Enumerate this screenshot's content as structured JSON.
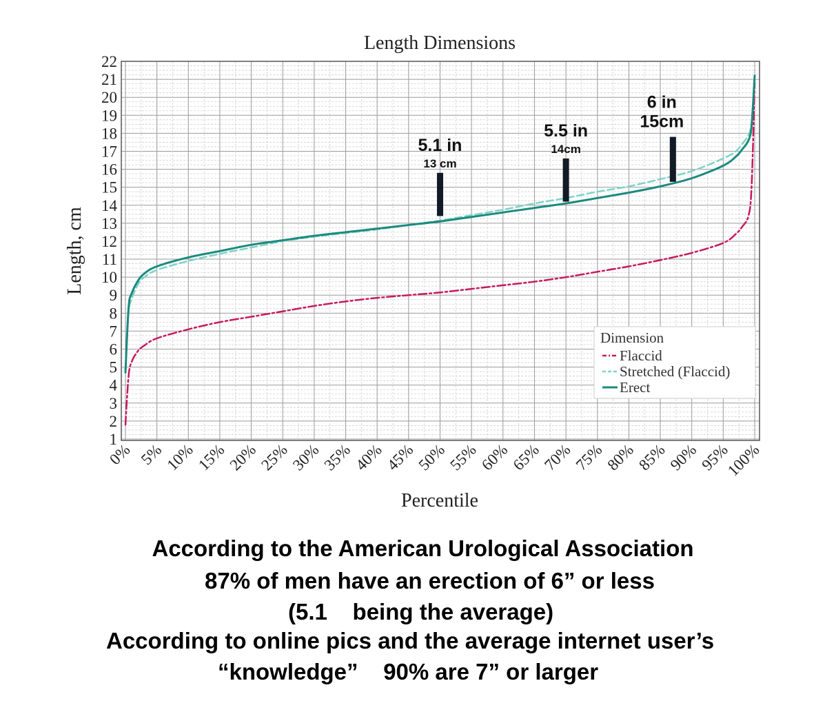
{
  "chart_data": {
    "type": "line",
    "title": "Length Dimensions",
    "xlabel": "Percentile",
    "ylabel": "Length, cm",
    "xlim": [
      0,
      100
    ],
    "ylim": [
      1,
      22
    ],
    "grid": true,
    "x_ticks": [
      0,
      5,
      10,
      15,
      20,
      25,
      30,
      35,
      40,
      45,
      50,
      55,
      60,
      65,
      70,
      75,
      80,
      85,
      90,
      95,
      100
    ],
    "x_tick_labels": [
      "0%",
      "5%",
      "10%",
      "15%",
      "20%",
      "25%",
      "30%",
      "35%",
      "40%",
      "45%",
      "50%",
      "55%",
      "60%",
      "65%",
      "70%",
      "75%",
      "80%",
      "85%",
      "90%",
      "95%",
      "100%"
    ],
    "y_ticks": [
      1,
      2,
      3,
      4,
      5,
      6,
      7,
      8,
      9,
      10,
      11,
      12,
      13,
      14,
      15,
      16,
      17,
      18,
      19,
      20,
      21,
      22
    ],
    "legend": {
      "title": "Dimension",
      "placement": "bottom-right"
    },
    "x": [
      0,
      0.5,
      1,
      2,
      3,
      5,
      10,
      15,
      20,
      25,
      30,
      35,
      40,
      45,
      50,
      55,
      60,
      65,
      70,
      75,
      80,
      85,
      90,
      95,
      97,
      98,
      99,
      99.5,
      100
    ],
    "series": [
      {
        "name": "Flaccid",
        "color": "#c8185f",
        "style": "dashdot",
        "values": [
          1.8,
          4.5,
          5.3,
          5.9,
          6.2,
          6.6,
          7.1,
          7.5,
          7.8,
          8.1,
          8.4,
          8.65,
          8.85,
          9.0,
          9.15,
          9.35,
          9.55,
          9.75,
          10.0,
          10.3,
          10.6,
          10.95,
          11.35,
          11.9,
          12.4,
          12.8,
          13.4,
          15.0,
          20.8
        ]
      },
      {
        "name": "Stretched (Flaccid)",
        "color": "#7ed3c8",
        "style": "dashed",
        "values": [
          4.9,
          8.0,
          8.8,
          9.6,
          10.0,
          10.4,
          10.9,
          11.3,
          11.65,
          12.0,
          12.25,
          12.45,
          12.65,
          12.9,
          13.15,
          13.45,
          13.75,
          14.1,
          14.4,
          14.75,
          15.05,
          15.45,
          15.9,
          16.6,
          17.0,
          17.4,
          17.9,
          18.6,
          21.0
        ]
      },
      {
        "name": "Erect",
        "color": "#1b8a7e",
        "style": "solid",
        "values": [
          4.7,
          8.3,
          9.1,
          9.8,
          10.2,
          10.6,
          11.1,
          11.45,
          11.8,
          12.05,
          12.3,
          12.5,
          12.7,
          12.9,
          13.1,
          13.35,
          13.6,
          13.85,
          14.1,
          14.4,
          14.7,
          15.05,
          15.5,
          16.2,
          16.7,
          17.1,
          17.6,
          18.4,
          21.2
        ]
      }
    ],
    "annotations": [
      {
        "inches": "5.1 in",
        "cm": "13 cm",
        "x": 50,
        "bar_from": 13.4,
        "bar_to": 15.8
      },
      {
        "inches": "5.5 in",
        "cm": "14cm",
        "x": 70,
        "bar_from": 14.2,
        "bar_to": 16.6
      },
      {
        "inches": "6 in",
        "cm": "15cm",
        "x": 87,
        "bar_from": 15.3,
        "bar_to": 17.8
      }
    ]
  },
  "caption": {
    "line1": "According to the American Urological Association",
    "line2": "87% of men have an erection of 6” or less",
    "line3": "(5.1    being the average)",
    "line4": "According to online pics and the average internet user’s",
    "line5": "“knowledge”    90% are 7” or larger"
  }
}
